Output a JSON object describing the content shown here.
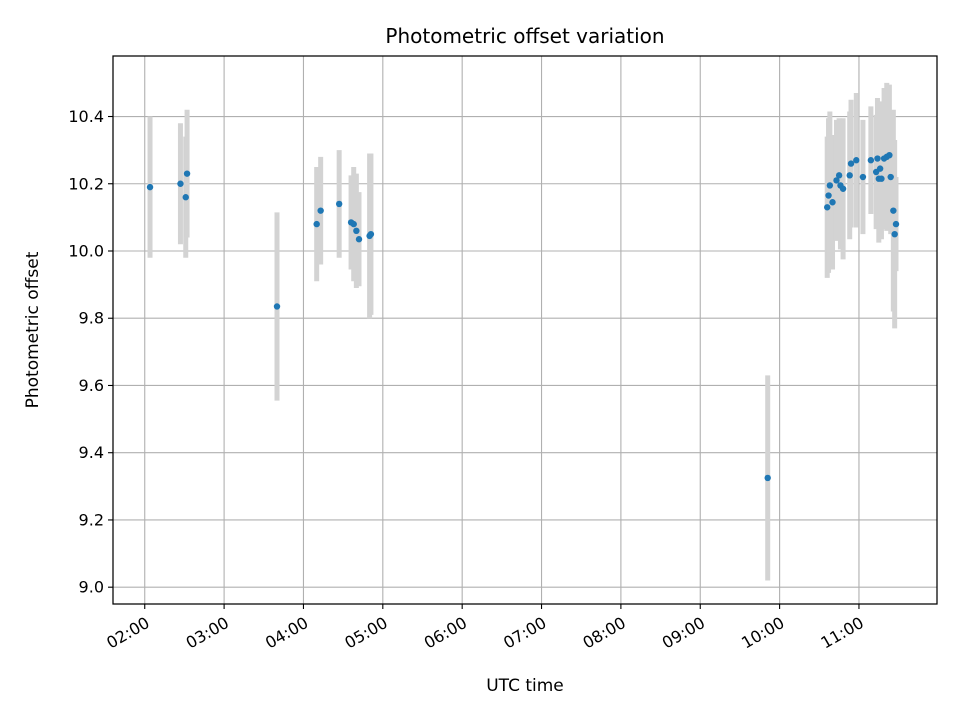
{
  "chart_data": {
    "type": "scatter",
    "title": "Photometric offset variation",
    "xlabel": "UTC time",
    "ylabel": "Photometric offset",
    "xlim": [
      "01:36",
      "11:59"
    ],
    "ylim": [
      8.95,
      10.58
    ],
    "x_ticks": [
      "02:00",
      "03:00",
      "04:00",
      "05:00",
      "06:00",
      "07:00",
      "08:00",
      "09:00",
      "10:00",
      "11:00"
    ],
    "y_ticks": [
      "9.0",
      "9.2",
      "9.4",
      "9.6",
      "9.8",
      "10.0",
      "10.2",
      "10.4"
    ],
    "grid": true,
    "colors": {
      "point": "#1f77b4",
      "errorbar": "#d3d3d3",
      "grid": "#b0b0b0"
    },
    "series": [
      {
        "points": [
          {
            "x": "02:04",
            "y": 10.19,
            "err": 0.21
          },
          {
            "x": "02:27",
            "y": 10.2,
            "err": 0.18
          },
          {
            "x": "02:31",
            "y": 10.16,
            "err": 0.18
          },
          {
            "x": "02:32",
            "y": 10.23,
            "err": 0.19
          },
          {
            "x": "03:40",
            "y": 9.835,
            "err": 0.28
          },
          {
            "x": "04:10",
            "y": 10.08,
            "err": 0.17
          },
          {
            "x": "04:13",
            "y": 10.12,
            "err": 0.16
          },
          {
            "x": "04:27",
            "y": 10.14,
            "err": 0.16
          },
          {
            "x": "04:36",
            "y": 10.085,
            "err": 0.14
          },
          {
            "x": "04:38",
            "y": 10.08,
            "err": 0.17
          },
          {
            "x": "04:40",
            "y": 10.06,
            "err": 0.17
          },
          {
            "x": "04:42",
            "y": 10.035,
            "err": 0.14
          },
          {
            "x": "04:50",
            "y": 10.045,
            "err": 0.245
          },
          {
            "x": "04:51",
            "y": 10.05,
            "err": 0.24
          },
          {
            "x": "09:51",
            "y": 9.325,
            "err": 0.305
          },
          {
            "x": "10:36",
            "y": 10.13,
            "err": 0.21
          },
          {
            "x": "10:37",
            "y": 10.165,
            "err": 0.23
          },
          {
            "x": "10:38",
            "y": 10.195,
            "err": 0.22
          },
          {
            "x": "10:40",
            "y": 10.145,
            "err": 0.2
          },
          {
            "x": "10:43",
            "y": 10.21,
            "err": 0.18
          },
          {
            "x": "10:45",
            "y": 10.225,
            "err": 0.17
          },
          {
            "x": "10:46",
            "y": 10.195,
            "err": 0.19
          },
          {
            "x": "10:48",
            "y": 10.185,
            "err": 0.21
          },
          {
            "x": "10:53",
            "y": 10.225,
            "err": 0.19
          },
          {
            "x": "10:54",
            "y": 10.26,
            "err": 0.19
          },
          {
            "x": "10:58",
            "y": 10.27,
            "err": 0.2
          },
          {
            "x": "11:03",
            "y": 10.22,
            "err": 0.17
          },
          {
            "x": "11:09",
            "y": 10.27,
            "err": 0.16
          },
          {
            "x": "11:13",
            "y": 10.235,
            "err": 0.17
          },
          {
            "x": "11:14",
            "y": 10.275,
            "err": 0.18
          },
          {
            "x": "11:15",
            "y": 10.215,
            "err": 0.19
          },
          {
            "x": "11:16",
            "y": 10.245,
            "err": 0.2
          },
          {
            "x": "11:17",
            "y": 10.215,
            "err": 0.18
          },
          {
            "x": "11:19",
            "y": 10.275,
            "err": 0.21
          },
          {
            "x": "11:21",
            "y": 10.28,
            "err": 0.22
          },
          {
            "x": "11:23",
            "y": 10.285,
            "err": 0.21
          },
          {
            "x": "11:24",
            "y": 10.22,
            "err": 0.17
          },
          {
            "x": "11:26",
            "y": 10.12,
            "err": 0.3
          },
          {
            "x": "11:27",
            "y": 10.05,
            "err": 0.28
          },
          {
            "x": "11:28",
            "y": 10.08,
            "err": 0.14
          }
        ]
      }
    ]
  }
}
